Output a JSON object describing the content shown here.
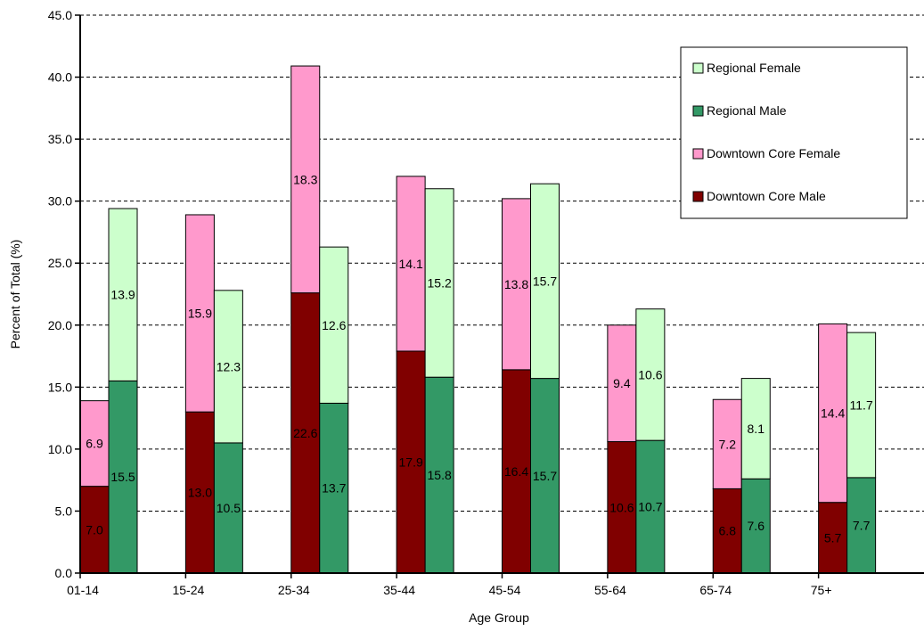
{
  "chart_data": {
    "type": "bar",
    "stacked": true,
    "grouped": true,
    "title": "",
    "xlabel": "Age Group",
    "ylabel": "Percent of Total (%)",
    "ylim": [
      0,
      45
    ],
    "ytick_step": 5,
    "ytick_labels": [
      "0.0",
      "5.0",
      "10.0",
      "15.0",
      "20.0",
      "25.0",
      "30.0",
      "35.0",
      "40.0",
      "45.0"
    ],
    "grid": "horizontal dashed",
    "legend_position": "top-right",
    "categories": [
      "01-14",
      "15-24",
      "25-34",
      "35-44",
      "45-54",
      "55-64",
      "65-74",
      "75+"
    ],
    "groups": [
      {
        "name": "Downtown Core",
        "series": [
          {
            "name": "Downtown Core Male",
            "color": "#800000",
            "values": [
              7.0,
              13.0,
              22.6,
              17.9,
              16.4,
              10.6,
              6.8,
              5.7
            ],
            "labels": [
              "7.0",
              "13.0",
              "22.6",
              "17.9",
              "16.4",
              "10.6",
              "6.8",
              "5.7"
            ]
          },
          {
            "name": "Downtown Core Female",
            "color": "#ff99cc",
            "values": [
              6.9,
              15.9,
              18.3,
              14.1,
              13.8,
              9.4,
              7.2,
              14.4
            ],
            "labels": [
              "6.9",
              "15.9",
              "18.3",
              "14.1",
              "13.8",
              "9.4",
              "7.2",
              "14.4"
            ]
          }
        ]
      },
      {
        "name": "Regional",
        "series": [
          {
            "name": "Regional Male",
            "color": "#339966",
            "values": [
              15.5,
              10.5,
              13.7,
              15.8,
              15.7,
              10.7,
              7.6,
              7.7
            ],
            "labels": [
              "15.5",
              "10.5",
              "13.7",
              "15.8",
              "15.7",
              "10.7",
              "7.6",
              "7.7"
            ]
          },
          {
            "name": "Regional Female",
            "color": "#ccffcc",
            "values": [
              13.9,
              12.3,
              12.6,
              15.2,
              15.7,
              10.6,
              8.1,
              11.7
            ],
            "labels": [
              "13.9",
              "12.3",
              "12.6",
              "15.2",
              "15.7",
              "10.6",
              "8.1",
              "11.7"
            ]
          }
        ]
      }
    ],
    "legend": [
      {
        "label": "Regional Female",
        "color": "#ccffcc"
      },
      {
        "label": "Regional Male",
        "color": "#339966"
      },
      {
        "label": "Downtown Core Female",
        "color": "#ff99cc"
      },
      {
        "label": "Downtown Core Male",
        "color": "#800000"
      }
    ]
  }
}
